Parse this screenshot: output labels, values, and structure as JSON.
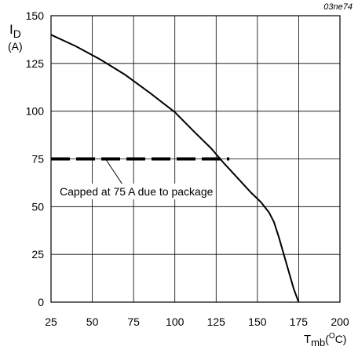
{
  "chart_data": {
    "type": "line",
    "figure_id": "03ne74",
    "xlabel": {
      "main": "T",
      "sub": "mb",
      "unit": "(",
      "unit_sup": "O",
      "unit_end": "C)"
    },
    "ylabel": {
      "main": "I",
      "sub": "D",
      "unit": "(A)"
    },
    "xlim": [
      25,
      200
    ],
    "ylim": [
      0,
      150
    ],
    "x_ticks": [
      25,
      50,
      75,
      100,
      125,
      150,
      175,
      200
    ],
    "y_ticks": [
      0,
      25,
      50,
      75,
      100,
      125,
      150
    ],
    "grid": true,
    "series": [
      {
        "style": "solid",
        "x": [
          25,
          40,
          55,
          70,
          85,
          100,
          112,
          122,
          130,
          138,
          146,
          152,
          157,
          160,
          163,
          166,
          169,
          172,
          175
        ],
        "y": [
          140,
          134,
          127,
          119,
          109.5,
          99.5,
          89,
          80.5,
          72.5,
          65,
          57.5,
          52.5,
          47,
          42,
          34,
          25,
          16,
          7,
          0
        ]
      },
      {
        "style": "dashed",
        "x": [
          25,
          133
        ],
        "y": [
          75,
          75
        ]
      }
    ],
    "annotation": {
      "text": "Capped at 75 A due to package",
      "pointer_from": [
        68,
        62
      ],
      "pointer_to": [
        58,
        75
      ]
    }
  }
}
